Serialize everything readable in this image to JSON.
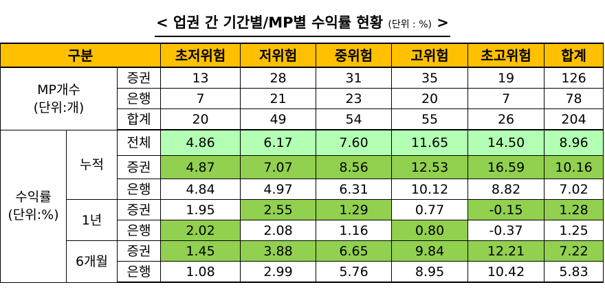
{
  "title": {
    "open": "<",
    "text": "업권 간 기간별/MP별 수익률 현황",
    "unit": "(단위 : %)",
    "close": ">"
  },
  "header": {
    "category": "구분",
    "columns": [
      "초저위험",
      "저위험",
      "중위험",
      "고위험",
      "초고위험",
      "합계"
    ]
  },
  "mp_count": {
    "label_line1": "MP개수",
    "label_line2": "(단위:개)",
    "rows": [
      {
        "label": "증권",
        "values": [
          "13",
          "28",
          "31",
          "35",
          "19",
          "126"
        ]
      },
      {
        "label": "은행",
        "values": [
          "7",
          "21",
          "23",
          "20",
          "7",
          "78"
        ]
      },
      {
        "label": "합계",
        "values": [
          "20",
          "49",
          "54",
          "55",
          "26",
          "204"
        ]
      }
    ]
  },
  "returns": {
    "label_line1": "수익률",
    "label_line2": "(단위:%)",
    "cumulative": {
      "label": "누적",
      "rows": [
        {
          "label": "전체",
          "values": [
            "4.86",
            "6.17",
            "7.60",
            "11.65",
            "14.50",
            "8.96"
          ]
        },
        {
          "label": "증권",
          "values": [
            "4.87",
            "7.07",
            "8.56",
            "12.53",
            "16.59",
            "10.16"
          ]
        },
        {
          "label": "은행",
          "values": [
            "4.84",
            "4.97",
            "6.31",
            "10.12",
            "8.82",
            "7.02"
          ]
        }
      ]
    },
    "one_year": {
      "label": "1년",
      "rows": [
        {
          "label": "증권",
          "values": [
            "1.95",
            "2.55",
            "1.29",
            "0.77",
            "-0.15",
            "1.28"
          ]
        },
        {
          "label": "은행",
          "values": [
            "2.02",
            "2.08",
            "1.16",
            "0.80",
            "-0.37",
            "1.25"
          ]
        }
      ]
    },
    "six_month": {
      "label": "6개월",
      "rows": [
        {
          "label": "증권",
          "values": [
            "1.45",
            "3.88",
            "6.65",
            "9.84",
            "12.21",
            "7.22"
          ]
        },
        {
          "label": "은행",
          "values": [
            "1.08",
            "2.99",
            "5.76",
            "8.95",
            "10.42",
            "5.83"
          ]
        }
      ]
    }
  },
  "colors": {
    "header_bg": "#ffc000",
    "highlight_light_green": "#b3ffb3",
    "highlight_green": "#92d050"
  }
}
